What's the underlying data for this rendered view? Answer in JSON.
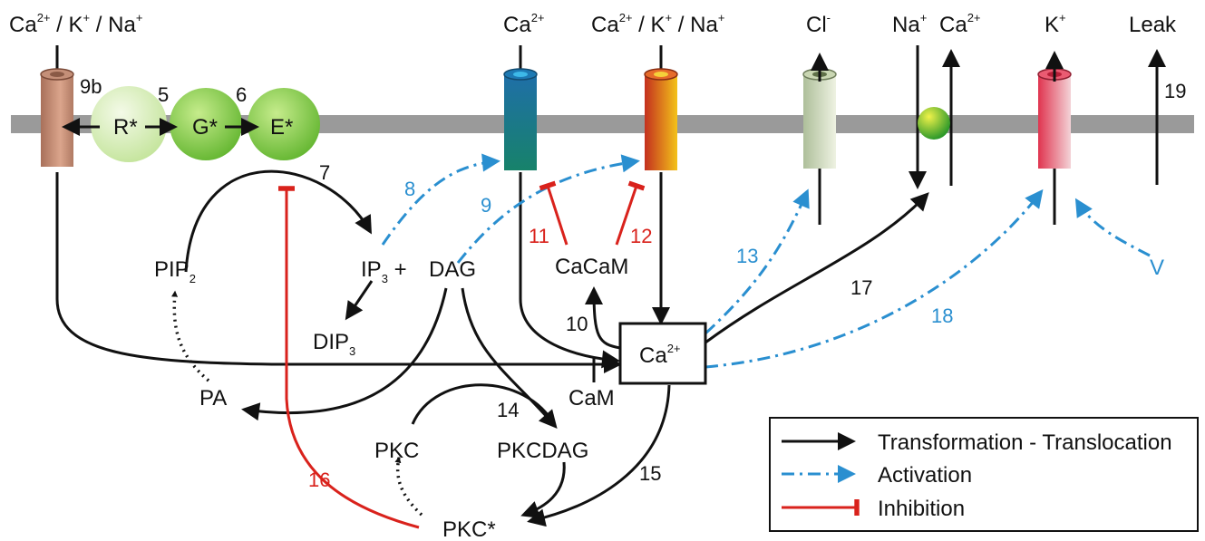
{
  "ions": {
    "left": [
      "Ca",
      "2+",
      " / K",
      "+",
      " / Na",
      "+"
    ],
    "ca": [
      "Ca",
      "2+"
    ],
    "mix": [
      "Ca",
      "2+",
      " / K",
      "+",
      " / Na",
      "+"
    ],
    "cl": [
      "Cl",
      "-"
    ],
    "na": [
      "Na",
      "+"
    ],
    "ca2": [
      "Ca",
      "2+"
    ],
    "k": [
      "K",
      "+"
    ],
    "leak": "Leak"
  },
  "receptor": {
    "r": "R*",
    "g": "G*",
    "e": "E*"
  },
  "molecules": {
    "pip": [
      "PIP",
      "2"
    ],
    "ip3": [
      "IP",
      "3",
      " +"
    ],
    "dag": "DAG",
    "dip": [
      "DIP",
      "3"
    ],
    "pa": "PA",
    "cacam": "CaCaM",
    "cam": "CaM",
    "ca_box": [
      "Ca",
      "2+"
    ],
    "pkc": "PKC",
    "pkcdag": "PKCDAG",
    "pkcstar": "PKC*",
    "v": "V"
  },
  "steps": {
    "s5": "5",
    "s6": "6",
    "s7": "7",
    "s8": "8",
    "s9": "9",
    "s9b": "9b",
    "s10": "10",
    "s11": "11",
    "s12": "12",
    "s13": "13",
    "s14": "14",
    "s15": "15",
    "s16": "16",
    "s17": "17",
    "s18": "18",
    "s19": "19"
  },
  "legend": {
    "transformation": "Transformation - Translocation",
    "activation": "Activation",
    "inhibition": "Inhibition"
  },
  "colors": {
    "arrow": "#111111",
    "activation": "#2a8fd0",
    "inhibition": "#d9221c",
    "membrane": "#9a9a9a"
  }
}
